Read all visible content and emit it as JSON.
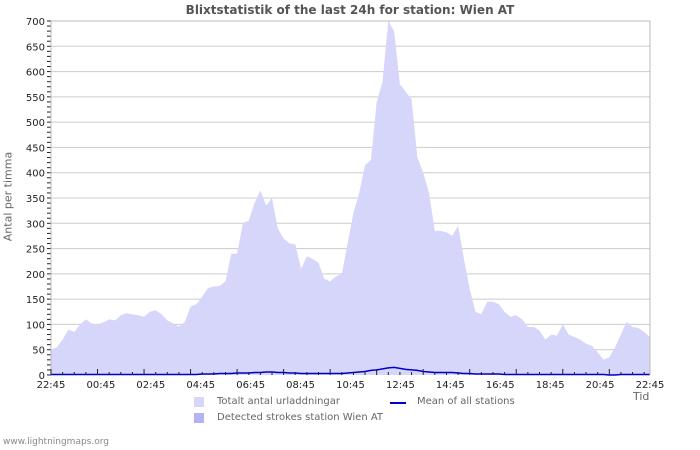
{
  "page": {
    "title": "Blixtstatistik of the last 24h for station: Wien AT",
    "footer": "www.lightningmaps.org"
  },
  "colors": {
    "total_fill": "#d6d6fa",
    "detected_fill": "#b4b4f5",
    "mean_line": "#0000cc",
    "grid": "#cccccc",
    "axis": "#bbbbbb"
  },
  "legend": {
    "items": [
      {
        "label": "Totalt antal urladdningar",
        "type": "area",
        "color": "#d6d6fa"
      },
      {
        "label": "Detected strokes station Wien AT",
        "type": "area",
        "color": "#b4b4f5"
      },
      {
        "label": "Mean of all stations",
        "type": "line",
        "color": "#0000cc"
      }
    ]
  },
  "chart_data": {
    "type": "area",
    "title": "Blixtstatistik of the last 24h for station: Wien AT",
    "xlabel": "Tid",
    "ylabel": "Antal per timma",
    "ylim": [
      0,
      700
    ],
    "yticks": [
      0,
      50,
      100,
      150,
      200,
      250,
      300,
      350,
      400,
      450,
      500,
      550,
      600,
      650,
      700
    ],
    "xticks": [
      "22:45",
      "00:45",
      "02:45",
      "04:45",
      "06:45",
      "08:45",
      "10:45",
      "12:45",
      "14:45",
      "16:45",
      "18:45",
      "20:45",
      "22:45"
    ],
    "grid": true,
    "legend_position": "bottom",
    "interval_minutes": 15,
    "series": [
      {
        "name": "Totalt antal urladdningar",
        "values": [
          50,
          55,
          70,
          90,
          85,
          100,
          110,
          102,
          100,
          104,
          110,
          108,
          118,
          122,
          120,
          118,
          115,
          125,
          128,
          120,
          108,
          102,
          96,
          105,
          135,
          140,
          155,
          172,
          175,
          176,
          185,
          240,
          240,
          300,
          305,
          340,
          365,
          335,
          350,
          290,
          270,
          260,
          258,
          210,
          235,
          230,
          222,
          190,
          185,
          195,
          200,
          260,
          320,
          360,
          415,
          425,
          540,
          580,
          700,
          680,
          575,
          560,
          545,
          430,
          400,
          360,
          285,
          285,
          282,
          275,
          295,
          230,
          170,
          125,
          120,
          145,
          145,
          140,
          125,
          115,
          118,
          110,
          95,
          95,
          88,
          70,
          80,
          78,
          100,
          80,
          75,
          70,
          62,
          58,
          45,
          30,
          35,
          55,
          80,
          105,
          95,
          93,
          85,
          75
        ]
      },
      {
        "name": "Detected strokes station Wien AT",
        "values": [
          0,
          0,
          0,
          0,
          0,
          0,
          0,
          0,
          0,
          0,
          0,
          0,
          0,
          0,
          0,
          0,
          0,
          0,
          0,
          0,
          0,
          0,
          0,
          0,
          0,
          0,
          0,
          0,
          0,
          0,
          0,
          0,
          0,
          0,
          0,
          0,
          0,
          0,
          0,
          0,
          0,
          0,
          0,
          0,
          0,
          0,
          0,
          0,
          0,
          0,
          0,
          0,
          0,
          0,
          0,
          0,
          0,
          0,
          0,
          0,
          0,
          0,
          0,
          0,
          0,
          0,
          0,
          0,
          0,
          0,
          0,
          0,
          0,
          0,
          0,
          0,
          0,
          0,
          0,
          0,
          0,
          0,
          0,
          0,
          0,
          0,
          0,
          0,
          0,
          0,
          0,
          0,
          0,
          0,
          0,
          0,
          0,
          0,
          0,
          0,
          0,
          0,
          0,
          0
        ]
      },
      {
        "name": "Mean of all stations",
        "values": [
          1,
          1,
          1,
          1,
          1,
          1,
          1,
          1,
          1,
          1,
          1,
          1,
          1,
          1,
          1,
          1,
          1,
          1,
          1,
          1,
          1,
          1,
          1,
          1,
          1,
          1,
          2,
          2,
          2,
          3,
          3,
          3,
          4,
          4,
          4,
          5,
          5,
          6,
          6,
          5,
          5,
          4,
          4,
          3,
          3,
          3,
          3,
          3,
          3,
          3,
          3,
          4,
          5,
          6,
          7,
          9,
          10,
          12,
          14,
          15,
          13,
          11,
          10,
          9,
          7,
          6,
          5,
          5,
          5,
          5,
          4,
          3,
          3,
          2,
          2,
          2,
          2,
          2,
          1,
          1,
          1,
          1,
          1,
          1,
          1,
          1,
          1,
          1,
          1,
          1,
          1,
          1,
          1,
          1,
          1,
          1,
          0,
          0,
          1,
          1,
          1,
          1,
          1,
          1
        ]
      }
    ]
  }
}
